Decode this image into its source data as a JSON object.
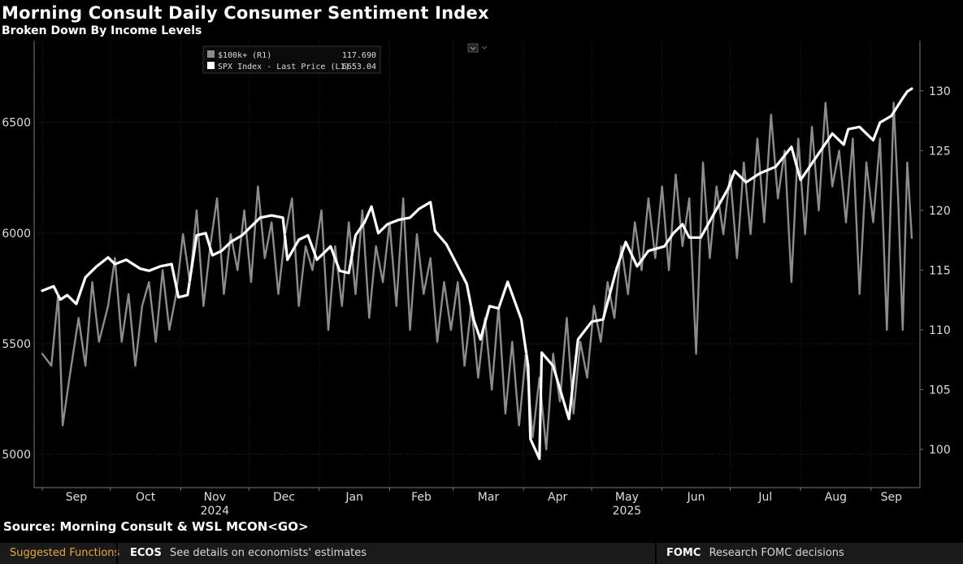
{
  "header": {
    "title": "Morning Consult Daily Consumer Sentiment Index",
    "subtitle": "Broken Down By Income Levels"
  },
  "footer": {
    "source": "Source: Morning Consult & WSL MCON<GO>"
  },
  "bottom_bar": {
    "suggested_label": "Suggested Functions",
    "items": [
      {
        "code": "ECOS",
        "description": "See details on economists' estimates"
      },
      {
        "code": "FOMC",
        "description": "Research FOMC decisions"
      }
    ]
  },
  "colors": {
    "background": "#000000",
    "series_gray": "#8c8c8c",
    "series_white": "#ffffff",
    "suggested": "#e8a838"
  },
  "chart_data": {
    "type": "line",
    "legend_position": "top-center",
    "grid": true,
    "x_axis": {
      "month_labels": [
        "Sep",
        "Oct",
        "Nov",
        "Dec",
        "Jan",
        "Feb",
        "Mar",
        "Apr",
        "May",
        "Jun",
        "Jul",
        "Aug",
        "Sep"
      ],
      "year_labels": [
        "2024",
        "2025"
      ],
      "range": [
        "2024-09-01",
        "2025-09-19"
      ]
    },
    "y_left": {
      "ticks": [
        5000,
        5500,
        6000,
        6500
      ],
      "range": [
        4850,
        6870
      ]
    },
    "y_right": {
      "ticks": [
        100,
        105,
        110,
        115,
        120,
        125,
        130
      ],
      "range": [
        96.8,
        134.2
      ]
    },
    "series": [
      {
        "name": "$100k+ (R1)",
        "last_value": "117.690",
        "axis": "right",
        "color": "#8c8c8c",
        "points": [
          [
            "2024-09-01",
            108
          ],
          [
            "2024-09-05",
            107
          ],
          [
            "2024-09-08",
            113
          ],
          [
            "2024-09-10",
            102
          ],
          [
            "2024-09-13",
            106
          ],
          [
            "2024-09-17",
            111
          ],
          [
            "2024-09-20",
            107
          ],
          [
            "2024-09-23",
            114
          ],
          [
            "2024-09-26",
            109
          ],
          [
            "2024-09-30",
            112
          ],
          [
            "2024-10-03",
            116
          ],
          [
            "2024-10-06",
            109
          ],
          [
            "2024-10-09",
            113
          ],
          [
            "2024-10-12",
            107
          ],
          [
            "2024-10-15",
            112
          ],
          [
            "2024-10-18",
            114
          ],
          [
            "2024-10-21",
            109
          ],
          [
            "2024-10-24",
            115
          ],
          [
            "2024-10-27",
            110
          ],
          [
            "2024-10-30",
            113
          ],
          [
            "2024-11-02",
            118
          ],
          [
            "2024-11-05",
            114
          ],
          [
            "2024-11-08",
            120
          ],
          [
            "2024-11-11",
            112
          ],
          [
            "2024-11-14",
            117
          ],
          [
            "2024-11-17",
            121
          ],
          [
            "2024-11-20",
            113
          ],
          [
            "2024-11-23",
            118
          ],
          [
            "2024-11-26",
            115
          ],
          [
            "2024-11-29",
            120
          ],
          [
            "2024-12-02",
            114
          ],
          [
            "2024-12-05",
            122
          ],
          [
            "2024-12-08",
            116
          ],
          [
            "2024-12-11",
            119
          ],
          [
            "2024-12-14",
            113
          ],
          [
            "2024-12-17",
            118
          ],
          [
            "2024-12-20",
            121
          ],
          [
            "2024-12-23",
            112
          ],
          [
            "2024-12-26",
            117
          ],
          [
            "2024-12-29",
            115
          ],
          [
            "2025-01-02",
            120
          ],
          [
            "2025-01-05",
            110
          ],
          [
            "2025-01-08",
            117
          ],
          [
            "2025-01-11",
            112
          ],
          [
            "2025-01-14",
            119
          ],
          [
            "2025-01-17",
            113
          ],
          [
            "2025-01-20",
            120
          ],
          [
            "2025-01-23",
            111
          ],
          [
            "2025-01-26",
            117
          ],
          [
            "2025-01-29",
            114
          ],
          [
            "2025-02-01",
            119
          ],
          [
            "2025-02-04",
            112
          ],
          [
            "2025-02-07",
            121
          ],
          [
            "2025-02-10",
            110
          ],
          [
            "2025-02-13",
            118
          ],
          [
            "2025-02-16",
            113
          ],
          [
            "2025-02-19",
            116
          ],
          [
            "2025-02-22",
            109
          ],
          [
            "2025-02-25",
            114
          ],
          [
            "2025-02-28",
            110
          ],
          [
            "2025-03-03",
            114
          ],
          [
            "2025-03-06",
            107
          ],
          [
            "2025-03-09",
            112
          ],
          [
            "2025-03-12",
            106
          ],
          [
            "2025-03-15",
            111
          ],
          [
            "2025-03-18",
            105
          ],
          [
            "2025-03-21",
            112
          ],
          [
            "2025-03-24",
            103
          ],
          [
            "2025-03-27",
            109
          ],
          [
            "2025-03-30",
            102
          ],
          [
            "2025-04-02",
            108
          ],
          [
            "2025-04-05",
            101
          ],
          [
            "2025-04-08",
            106
          ],
          [
            "2025-04-11",
            100
          ],
          [
            "2025-04-14",
            108
          ],
          [
            "2025-04-17",
            104
          ],
          [
            "2025-04-20",
            111
          ],
          [
            "2025-04-23",
            103
          ],
          [
            "2025-04-26",
            109
          ],
          [
            "2025-04-29",
            106
          ],
          [
            "2025-05-02",
            112
          ],
          [
            "2025-05-05",
            109
          ],
          [
            "2025-05-08",
            114
          ],
          [
            "2025-05-11",
            111
          ],
          [
            "2025-05-14",
            117
          ],
          [
            "2025-05-17",
            113
          ],
          [
            "2025-05-20",
            119
          ],
          [
            "2025-05-23",
            115
          ],
          [
            "2025-05-26",
            121
          ],
          [
            "2025-05-29",
            116
          ],
          [
            "2025-06-01",
            122
          ],
          [
            "2025-06-04",
            115
          ],
          [
            "2025-06-07",
            123
          ],
          [
            "2025-06-10",
            117
          ],
          [
            "2025-06-13",
            121
          ],
          [
            "2025-06-16",
            108
          ],
          [
            "2025-06-19",
            124
          ],
          [
            "2025-06-22",
            116
          ],
          [
            "2025-06-25",
            122
          ],
          [
            "2025-06-28",
            118
          ],
          [
            "2025-07-01",
            123
          ],
          [
            "2025-07-04",
            116
          ],
          [
            "2025-07-07",
            124
          ],
          [
            "2025-07-10",
            118
          ],
          [
            "2025-07-13",
            126
          ],
          [
            "2025-07-16",
            119
          ],
          [
            "2025-07-19",
            128
          ],
          [
            "2025-07-22",
            121
          ],
          [
            "2025-07-25",
            125
          ],
          [
            "2025-07-28",
            114
          ],
          [
            "2025-07-31",
            126
          ],
          [
            "2025-08-03",
            118
          ],
          [
            "2025-08-06",
            127
          ],
          [
            "2025-08-09",
            120
          ],
          [
            "2025-08-12",
            129
          ],
          [
            "2025-08-15",
            122
          ],
          [
            "2025-08-18",
            125
          ],
          [
            "2025-08-21",
            119
          ],
          [
            "2025-08-24",
            126
          ],
          [
            "2025-08-27",
            113
          ],
          [
            "2025-08-30",
            124
          ],
          [
            "2025-09-02",
            119
          ],
          [
            "2025-09-05",
            126
          ],
          [
            "2025-09-08",
            110
          ],
          [
            "2025-09-11",
            129
          ],
          [
            "2025-09-13",
            121
          ],
          [
            "2025-09-15",
            110
          ],
          [
            "2025-09-17",
            124
          ],
          [
            "2025-09-19",
            117.69
          ]
        ]
      },
      {
        "name": "SPX Index - Last Price (L1)",
        "last_value": "6653.04",
        "axis": "left",
        "color": "#ffffff",
        "points": [
          [
            "2024-09-01",
            5740
          ],
          [
            "2024-09-06",
            5760
          ],
          [
            "2024-09-09",
            5700
          ],
          [
            "2024-09-12",
            5720
          ],
          [
            "2024-09-16",
            5680
          ],
          [
            "2024-09-20",
            5800
          ],
          [
            "2024-09-25",
            5850
          ],
          [
            "2024-09-30",
            5890
          ],
          [
            "2024-10-03",
            5860
          ],
          [
            "2024-10-08",
            5880
          ],
          [
            "2024-10-14",
            5840
          ],
          [
            "2024-10-18",
            5830
          ],
          [
            "2024-10-23",
            5850
          ],
          [
            "2024-10-28",
            5860
          ],
          [
            "2024-10-31",
            5710
          ],
          [
            "2024-11-04",
            5720
          ],
          [
            "2024-11-08",
            5990
          ],
          [
            "2024-11-12",
            6000
          ],
          [
            "2024-11-15",
            5900
          ],
          [
            "2024-11-19",
            5920
          ],
          [
            "2024-11-23",
            5960
          ],
          [
            "2024-11-28",
            5990
          ],
          [
            "2024-12-02",
            6030
          ],
          [
            "2024-12-06",
            6070
          ],
          [
            "2024-12-11",
            6080
          ],
          [
            "2024-12-16",
            6070
          ],
          [
            "2024-12-18",
            5880
          ],
          [
            "2024-12-23",
            5970
          ],
          [
            "2024-12-27",
            5990
          ],
          [
            "2024-12-31",
            5880
          ],
          [
            "2025-01-06",
            5940
          ],
          [
            "2025-01-10",
            5830
          ],
          [
            "2025-01-14",
            5820
          ],
          [
            "2025-01-17",
            5990
          ],
          [
            "2025-01-21",
            6050
          ],
          [
            "2025-01-24",
            6120
          ],
          [
            "2025-01-27",
            6000
          ],
          [
            "2025-01-31",
            6040
          ],
          [
            "2025-02-05",
            6060
          ],
          [
            "2025-02-10",
            6070
          ],
          [
            "2025-02-14",
            6110
          ],
          [
            "2025-02-19",
            6140
          ],
          [
            "2025-02-21",
            6010
          ],
          [
            "2025-02-26",
            5950
          ],
          [
            "2025-03-03",
            5850
          ],
          [
            "2025-03-07",
            5770
          ],
          [
            "2025-03-10",
            5610
          ],
          [
            "2025-03-13",
            5520
          ],
          [
            "2025-03-17",
            5670
          ],
          [
            "2025-03-21",
            5660
          ],
          [
            "2025-03-25",
            5780
          ],
          [
            "2025-03-31",
            5610
          ],
          [
            "2025-04-03",
            5400
          ],
          [
            "2025-04-04",
            5070
          ],
          [
            "2025-04-08",
            4980
          ],
          [
            "2025-04-09",
            5460
          ],
          [
            "2025-04-14",
            5400
          ],
          [
            "2025-04-21",
            5160
          ],
          [
            "2025-04-25",
            5520
          ],
          [
            "2025-05-01",
            5600
          ],
          [
            "2025-05-06",
            5610
          ],
          [
            "2025-05-12",
            5840
          ],
          [
            "2025-05-16",
            5960
          ],
          [
            "2025-05-21",
            5850
          ],
          [
            "2025-05-26",
            5920
          ],
          [
            "2025-06-02",
            5940
          ],
          [
            "2025-06-06",
            6000
          ],
          [
            "2025-06-10",
            6040
          ],
          [
            "2025-06-13",
            5980
          ],
          [
            "2025-06-18",
            5980
          ],
          [
            "2025-06-24",
            6090
          ],
          [
            "2025-06-30",
            6200
          ],
          [
            "2025-07-03",
            6280
          ],
          [
            "2025-07-08",
            6230
          ],
          [
            "2025-07-14",
            6270
          ],
          [
            "2025-07-21",
            6300
          ],
          [
            "2025-07-28",
            6390
          ],
          [
            "2025-08-01",
            6240
          ],
          [
            "2025-08-05",
            6300
          ],
          [
            "2025-08-11",
            6390
          ],
          [
            "2025-08-15",
            6450
          ],
          [
            "2025-08-20",
            6400
          ],
          [
            "2025-08-22",
            6470
          ],
          [
            "2025-08-27",
            6480
          ],
          [
            "2025-09-02",
            6420
          ],
          [
            "2025-09-05",
            6500
          ],
          [
            "2025-09-10",
            6530
          ],
          [
            "2025-09-15",
            6610
          ],
          [
            "2025-09-17",
            6640
          ],
          [
            "2025-09-19",
            6653.04
          ]
        ]
      }
    ]
  }
}
